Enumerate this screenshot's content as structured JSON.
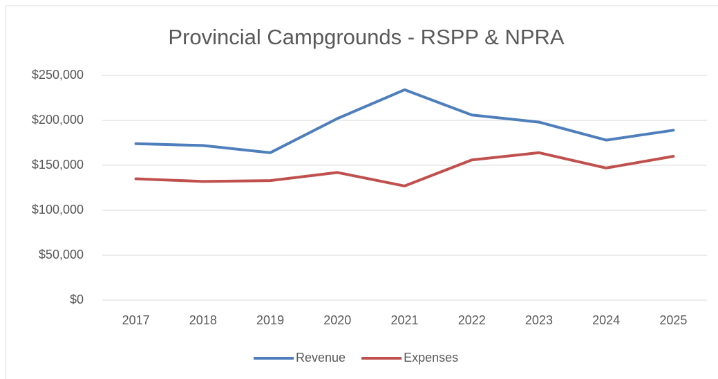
{
  "chart_data": {
    "type": "line",
    "title": "Provincial Campgrounds - RSPP & NPRA",
    "categories": [
      "2017",
      "2018",
      "2019",
      "2020",
      "2021",
      "2022",
      "2023",
      "2024",
      "2025"
    ],
    "series": [
      {
        "name": "Revenue",
        "color": "#4e7ebb",
        "values": [
          174000,
          172000,
          164000,
          202000,
          234000,
          206000,
          198000,
          178000,
          189000
        ]
      },
      {
        "name": "Expenses",
        "color": "#c0504d",
        "values": [
          135000,
          132000,
          133000,
          142000,
          127000,
          156000,
          164000,
          147000,
          160000
        ]
      }
    ],
    "ylim": [
      0,
      250000
    ],
    "yticks": [
      {
        "value": 0,
        "label": "$0"
      },
      {
        "value": 50000,
        "label": "$50,000"
      },
      {
        "value": 100000,
        "label": "$100,000"
      },
      {
        "value": 150000,
        "label": "$150,000"
      },
      {
        "value": 200000,
        "label": "$200,000"
      },
      {
        "value": 250000,
        "label": "$250,000"
      }
    ],
    "grid": true,
    "legend": "bottom"
  }
}
